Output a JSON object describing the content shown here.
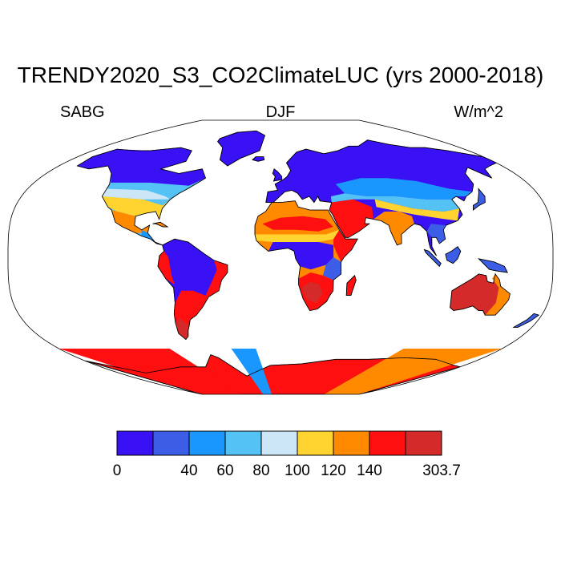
{
  "figure": {
    "title": "TRENDY2020_S3_CO2ClimateLUC (yrs 2000-2018)",
    "left_string": "SABG",
    "center_string": "DJF",
    "right_string": "W/m^2",
    "projection": "Robinson",
    "ocean_color": "#ffffff",
    "coastline_color": "#000000"
  },
  "colorbar": {
    "colors": [
      "#3a10f5",
      "#3c5ee6",
      "#1a96ff",
      "#55c2f5",
      "#cde6f7",
      "#ffd430",
      "#ff8a00",
      "#ff0f0f",
      "#d42a2a"
    ],
    "labels": [
      "0",
      "40",
      "60",
      "80",
      "100",
      "120",
      "140",
      "303.7"
    ]
  },
  "regions": [
    {
      "name": "Canada / Alaska",
      "bin": 0
    },
    {
      "name": "United States",
      "bin": 3
    },
    {
      "name": "Mexico",
      "bin": 6
    },
    {
      "name": "Amazon",
      "bin": 0
    },
    {
      "name": "Southern South America",
      "bin": 7
    },
    {
      "name": "Patagonia",
      "bin": 8
    },
    {
      "name": "Northern Eurasia",
      "bin": 0
    },
    {
      "name": "Central Asia",
      "bin": 2
    },
    {
      "name": "Sahara",
      "bin": 6
    },
    {
      "name": "Arabia",
      "bin": 7
    },
    {
      "name": "India",
      "bin": 6
    },
    {
      "name": "Central Africa",
      "bin": 0
    },
    {
      "name": "Southern Africa",
      "bin": 7
    },
    {
      "name": "Southeast Asia",
      "bin": 1
    },
    {
      "name": "Australia",
      "bin": 8
    },
    {
      "name": "Antarctica",
      "bin": 7
    }
  ]
}
